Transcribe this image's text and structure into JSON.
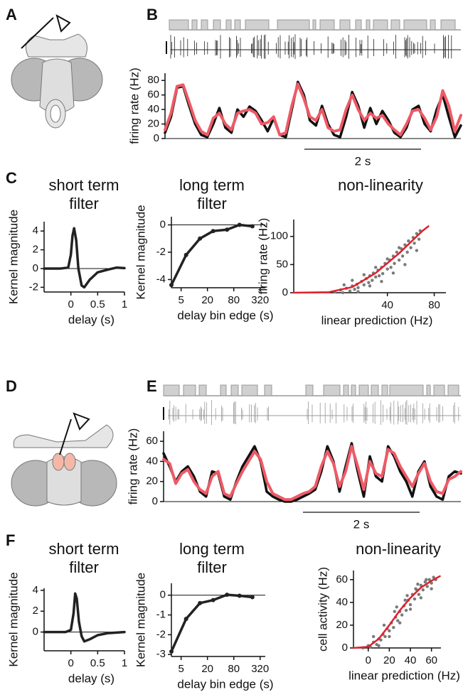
{
  "panel_labels": [
    "A",
    "B",
    "C",
    "D",
    "E",
    "F"
  ],
  "chart_data": [
    {
      "type": "line",
      "ylabel": "firing rate (Hz)",
      "scalebar_label": "2 s",
      "ylim": [
        0,
        90
      ],
      "yticks": [
        0,
        20,
        40,
        60,
        80
      ],
      "zero_line": true,
      "series": [
        {
          "color": "#111111",
          "values": [
            8,
            30,
            70,
            72,
            45,
            20,
            5,
            2,
            20,
            42,
            15,
            8,
            40,
            30,
            44,
            38,
            25,
            10,
            28,
            5,
            2,
            40,
            78,
            60,
            25,
            18,
            45,
            20,
            5,
            2,
            30,
            64,
            45,
            15,
            42,
            20,
            38,
            25,
            8,
            2,
            15,
            40,
            45,
            20,
            10,
            40,
            60,
            30,
            2,
            18
          ]
        },
        {
          "color": "#ee5a66",
          "values": [
            12,
            35,
            72,
            74,
            50,
            25,
            10,
            5,
            28,
            35,
            20,
            12,
            35,
            38,
            40,
            35,
            20,
            22,
            30,
            5,
            8,
            45,
            75,
            55,
            30,
            25,
            40,
            15,
            10,
            12,
            40,
            60,
            40,
            25,
            35,
            28,
            32,
            20,
            12,
            5,
            20,
            38,
            40,
            28,
            12,
            30,
            66,
            45,
            10,
            32
          ]
        }
      ]
    },
    {
      "type": "line",
      "title": "short term filter",
      "xlabel": "delay (s)",
      "ylabel": "Kernel magnitude",
      "xlim": [
        -0.5,
        1
      ],
      "xticks": [
        0,
        0.5,
        1
      ],
      "ylim": [
        -2.5,
        5
      ],
      "yticks": [
        -2,
        0,
        2,
        4
      ],
      "zero_line": true,
      "series": [
        {
          "color": "#222222",
          "x": [
            -0.5,
            -0.2,
            -0.05,
            0,
            0.03,
            0.06,
            0.1,
            0.14,
            0.2,
            0.25,
            0.35,
            0.5,
            0.7,
            0.85,
            1
          ],
          "values": [
            0,
            0,
            0.1,
            1.5,
            3.5,
            4.3,
            3.0,
            0,
            -1.8,
            -2.0,
            -1.2,
            -0.4,
            -0.1,
            0.1,
            0.05
          ]
        }
      ]
    },
    {
      "type": "line",
      "title": "long term filter",
      "xlabel": "delay bin edge (s)",
      "ylabel": "Kernel magnitude",
      "xscale": "log",
      "markers": true,
      "xlim": [
        3,
        420
      ],
      "xticks": [
        5,
        20,
        80,
        320
      ],
      "ylim": [
        -4.6,
        0.6
      ],
      "yticks": [
        -4,
        -2,
        0
      ],
      "zero_line": true,
      "series": [
        {
          "color": "#222222",
          "x": [
            3,
            6.5,
            13.5,
            27,
            56,
            108,
            213
          ],
          "values": [
            -4.4,
            -2.2,
            -1.0,
            -0.45,
            -0.35,
            0,
            -0.1
          ]
        }
      ]
    },
    {
      "type": "scatter",
      "title": "non-linearity",
      "xlabel": "linear prediction (Hz)",
      "ylabel": "firing rate (Hz)",
      "xlim": [
        -40,
        90
      ],
      "xticks": [
        40,
        80
      ],
      "ylim": [
        0,
        130
      ],
      "yticks": [
        0,
        50,
        100
      ],
      "series": [
        {
          "color": "#7a7a7a",
          "x": [
            -5,
            0,
            2,
            5,
            8,
            10,
            12,
            14,
            15,
            18,
            20,
            22,
            24,
            25,
            27,
            28,
            30,
            32,
            33,
            35,
            36,
            38,
            40,
            42,
            43,
            45,
            46,
            48,
            50,
            52,
            53,
            55,
            57,
            58,
            60,
            62,
            63,
            65,
            67,
            68,
            3,
            10,
            20,
            30,
            40,
            50,
            15,
            25,
            35,
            45,
            55,
            65
          ],
          "values": [
            2,
            5,
            0,
            8,
            3,
            12,
            6,
            15,
            9,
            20,
            14,
            25,
            18,
            30,
            22,
            35,
            28,
            40,
            30,
            45,
            34,
            52,
            42,
            58,
            45,
            65,
            52,
            72,
            58,
            78,
            65,
            85,
            72,
            92,
            80,
            98,
            88,
            105,
            95,
            110,
            14,
            22,
            32,
            45,
            60,
            80,
            2,
            12,
            20,
            35,
            50,
            75
          ]
        },
        {
          "color": "#e2202c",
          "style": "line",
          "x": [
            -40,
            -10,
            10,
            30,
            50,
            70,
            75
          ],
          "values": [
            0,
            1,
            10,
            35,
            70,
            110,
            118
          ]
        }
      ]
    },
    {
      "type": "line",
      "ylabel": "firing rate (Hz)",
      "scalebar_label": "2 s",
      "ylim": [
        0,
        70
      ],
      "yticks": [
        0,
        20,
        40,
        60
      ],
      "zero_line": true,
      "series": [
        {
          "color": "#111111",
          "values": [
            48,
            35,
            20,
            30,
            35,
            25,
            10,
            5,
            30,
            28,
            5,
            2,
            20,
            35,
            45,
            55,
            40,
            10,
            5,
            2,
            0,
            0,
            2,
            5,
            8,
            12,
            30,
            55,
            40,
            10,
            35,
            58,
            30,
            5,
            45,
            25,
            20,
            55,
            45,
            30,
            20,
            5,
            30,
            40,
            15,
            5,
            2,
            25,
            30,
            28
          ]
        },
        {
          "color": "#ee5a66",
          "values": [
            42,
            38,
            18,
            28,
            32,
            20,
            12,
            8,
            25,
            30,
            8,
            5,
            18,
            30,
            40,
            50,
            42,
            20,
            8,
            5,
            2,
            2,
            5,
            8,
            10,
            15,
            35,
            50,
            38,
            15,
            30,
            55,
            35,
            12,
            40,
            28,
            25,
            52,
            48,
            35,
            25,
            15,
            28,
            38,
            20,
            10,
            8,
            22,
            25,
            30
          ]
        }
      ]
    },
    {
      "type": "line",
      "title": "short term filter",
      "xlabel": "delay (s)",
      "ylabel": "Kernel magnitude",
      "xlim": [
        -0.5,
        1
      ],
      "xticks": [
        0,
        0.5,
        1
      ],
      "ylim": [
        -1.8,
        4.2
      ],
      "yticks": [
        0,
        2,
        4
      ],
      "zero_line": true,
      "series": [
        {
          "color": "#222222",
          "x": [
            -0.5,
            -0.1,
            0,
            0.05,
            0.08,
            0.11,
            0.15,
            0.2,
            0.25,
            0.35,
            0.5,
            0.7,
            1
          ],
          "values": [
            0,
            0,
            0.2,
            1.8,
            3.7,
            3.2,
            1.0,
            -0.4,
            -0.9,
            -0.7,
            -0.3,
            -0.1,
            0
          ]
        }
      ]
    },
    {
      "type": "line",
      "title": "long term filter",
      "xlabel": "delay bin edge (s)",
      "ylabel": "Kernel magnitude",
      "xscale": "log",
      "markers": true,
      "xlim": [
        3,
        420
      ],
      "xticks": [
        5,
        20,
        80,
        320
      ],
      "ylim": [
        -3.1,
        0.6
      ],
      "yticks": [
        -3,
        -2,
        -1,
        0
      ],
      "zero_line": true,
      "series": [
        {
          "color": "#222222",
          "x": [
            3,
            6.5,
            13.5,
            27,
            56,
            108,
            213
          ],
          "values": [
            -2.85,
            -1.2,
            -0.4,
            -0.25,
            0.02,
            -0.03,
            -0.1
          ]
        }
      ]
    },
    {
      "type": "scatter",
      "title": "non-linearity",
      "xlabel": "linear prediction (Hz)",
      "ylabel": "cell activity (Hz)",
      "xlim": [
        -14,
        69
      ],
      "xticks": [
        0,
        20,
        40,
        60
      ],
      "ylim": [
        0,
        68
      ],
      "yticks": [
        0,
        20,
        40,
        60
      ],
      "series": [
        {
          "color": "#7a7a7a",
          "x": [
            -5,
            0,
            2,
            5,
            8,
            10,
            12,
            14,
            16,
            18,
            20,
            22,
            24,
            26,
            28,
            30,
            32,
            34,
            36,
            38,
            40,
            42,
            44,
            46,
            48,
            50,
            52,
            54,
            56,
            58,
            60,
            62,
            64,
            5,
            15,
            25,
            35,
            45,
            55,
            10,
            20,
            30,
            40,
            50,
            60,
            27,
            37,
            47
          ],
          "values": [
            0,
            2,
            1,
            5,
            3,
            8,
            7,
            12,
            10,
            17,
            15,
            22,
            18,
            27,
            24,
            32,
            29,
            37,
            33,
            42,
            38,
            47,
            43,
            51,
            47,
            55,
            51,
            58,
            54,
            60,
            57,
            62,
            60,
            10,
            20,
            32,
            42,
            52,
            60,
            2,
            10,
            22,
            34,
            44,
            52,
            36,
            46,
            56
          ]
        },
        {
          "color": "#e2202c",
          "style": "line",
          "x": [
            -14,
            0,
            10,
            20,
            30,
            40,
            50,
            60,
            68
          ],
          "values": [
            0,
            1,
            8,
            20,
            33,
            44,
            53,
            59,
            63
          ]
        }
      ]
    }
  ]
}
